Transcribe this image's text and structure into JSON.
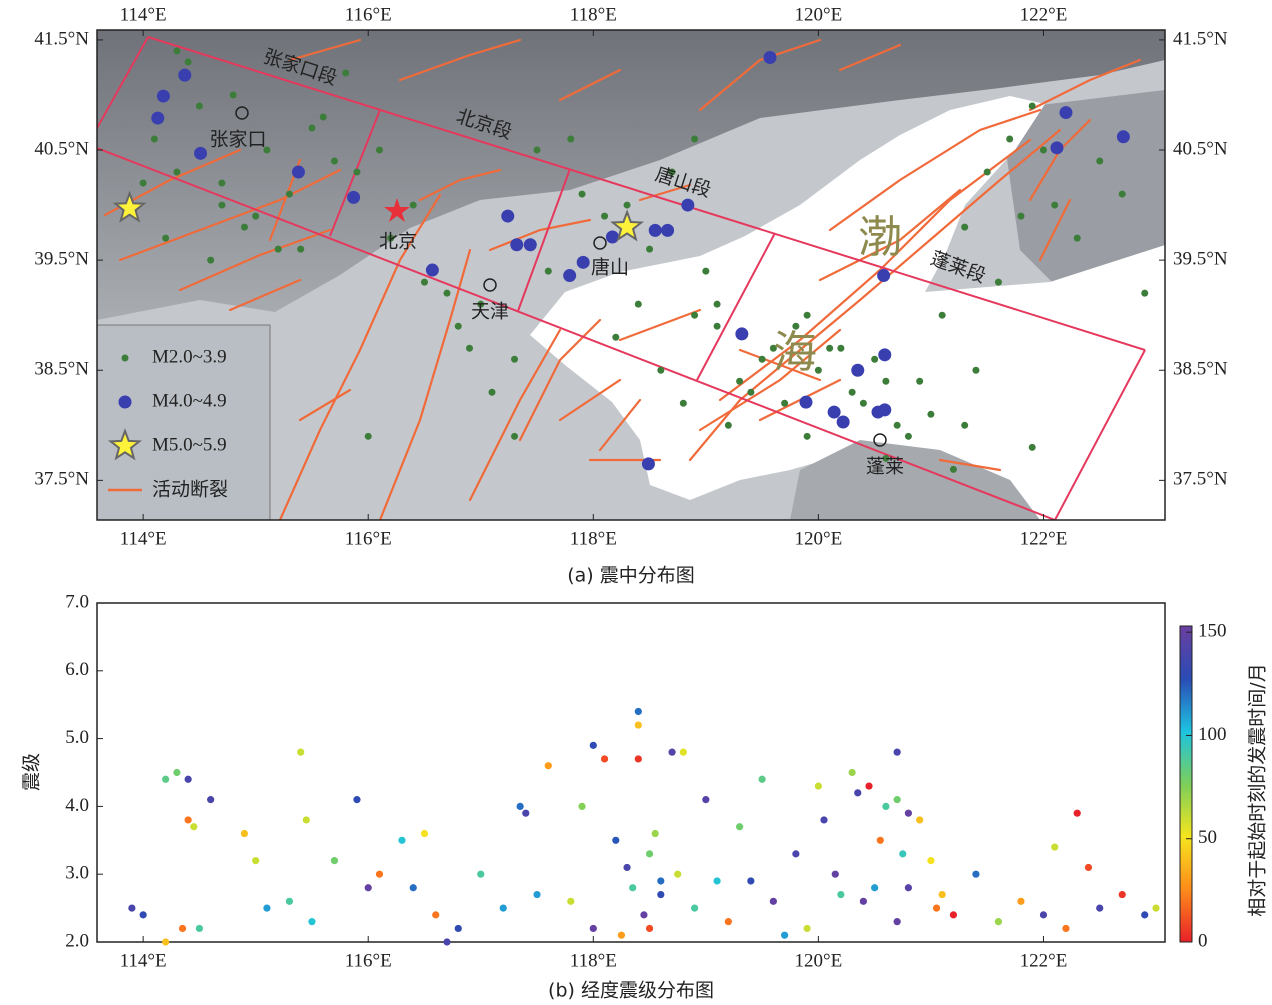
{
  "chart_data": [
    {
      "type": "map",
      "title": "(a) 震中分布图",
      "xlim": [
        113.59,
        123.08
      ],
      "ylim": [
        37.14,
        41.59
      ],
      "xticks": [
        {
          "value": 114,
          "label": "114°E"
        },
        {
          "value": 116,
          "label": "116°E"
        },
        {
          "value": 118,
          "label": "118°E"
        },
        {
          "value": 120,
          "label": "120°E"
        },
        {
          "value": 122,
          "label": "122°E"
        }
      ],
      "yticks": [
        {
          "value": 37.5,
          "label": "37.5°N"
        },
        {
          "value": 38.5,
          "label": "38.5°N"
        },
        {
          "value": 39.5,
          "label": "39.5°N"
        },
        {
          "value": 40.5,
          "label": "40.5°N"
        },
        {
          "value": 41.5,
          "label": "41.5°N"
        }
      ],
      "series": [
        {
          "name": "M2.0~3.9",
          "color": "#3d7d3a",
          "marker": "dot",
          "x": [
            114.1,
            114.3,
            114.5,
            114.7,
            114.9,
            115.1,
            115.3,
            115.5,
            115.7,
            115.2,
            114.6,
            114.2,
            114.0,
            114.4,
            114.8,
            115.0,
            115.4,
            115.9,
            116.2,
            116.5,
            116.8,
            117.0,
            117.3,
            117.6,
            117.9,
            118.1,
            118.3,
            118.5,
            118.7,
            118.9,
            119.1,
            119.3,
            119.5,
            119.7,
            119.9,
            120.1,
            120.3,
            120.5,
            120.7,
            120.9,
            121.1,
            121.3,
            121.5,
            121.7,
            121.9,
            122.1,
            122.3,
            122.5,
            122.7,
            122.9,
            116.7,
            116.9,
            117.1,
            117.3,
            118.2,
            118.4,
            118.6,
            118.8,
            119.0,
            119.2,
            119.4,
            119.6,
            119.8,
            120.0,
            120.2,
            120.4,
            120.6,
            120.8,
            121.0,
            121.2,
            121.4,
            121.6,
            121.8,
            122.0,
            115.6,
            115.8,
            116.1,
            116.4,
            114.3,
            114.7,
            119.1,
            119.9,
            120.6,
            121.3,
            117.5,
            116.0,
            115.1,
            117.8,
            118.9,
            121.9
          ],
          "y": [
            40.6,
            40.3,
            40.9,
            40.2,
            39.8,
            40.5,
            40.1,
            40.7,
            40.4,
            39.6,
            39.5,
            39.7,
            40.2,
            41.3,
            41.0,
            39.9,
            39.6,
            40.3,
            39.7,
            39.3,
            38.9,
            39.1,
            38.6,
            39.4,
            40.1,
            39.9,
            40.0,
            39.6,
            40.3,
            40.6,
            38.9,
            38.4,
            38.6,
            38.2,
            37.9,
            38.7,
            38.3,
            38.6,
            38.0,
            38.4,
            39.0,
            39.8,
            40.3,
            40.6,
            40.9,
            40.0,
            39.7,
            40.4,
            40.1,
            39.2,
            39.2,
            38.7,
            38.3,
            37.9,
            38.8,
            39.1,
            38.5,
            38.2,
            39.4,
            38.0,
            38.3,
            38.7,
            38.9,
            38.5,
            38.7,
            38.2,
            38.4,
            37.9,
            38.1,
            37.6,
            38.5,
            39.3,
            39.9,
            40.5,
            40.8,
            41.2,
            40.5,
            40.0,
            41.4,
            40.0,
            39.1,
            39.0,
            37.7,
            38.0,
            40.5,
            37.9,
            38.2,
            40.6,
            39.0,
            37.8
          ]
        },
        {
          "name": "M4.0~4.9",
          "color": "#3a3fb0",
          "marker": "circle",
          "x": [
            114.37,
            114.18,
            114.13,
            114.51,
            115.38,
            115.87,
            117.24,
            117.32,
            117.44,
            116.57,
            117.79,
            117.91,
            118.17,
            118.55,
            118.66,
            118.84,
            119.57,
            119.32,
            120.35,
            120.59,
            119.89,
            120.14,
            120.22,
            120.53,
            120.59,
            120.58,
            122.2,
            122.12,
            122.71,
            118.49
          ],
          "y": [
            41.18,
            40.99,
            40.79,
            40.47,
            40.3,
            40.07,
            39.9,
            39.64,
            39.64,
            39.41,
            39.36,
            39.48,
            39.71,
            39.77,
            39.77,
            40.0,
            41.34,
            38.83,
            38.5,
            38.64,
            38.21,
            38.12,
            38.03,
            38.12,
            38.14,
            39.36,
            40.84,
            40.52,
            40.62,
            37.65
          ]
        },
        {
          "name": "M5.0~5.9",
          "color": "#fff23a",
          "marker": "star",
          "x": [
            113.88,
            118.3
          ],
          "y": [
            39.97,
            39.8
          ]
        }
      ],
      "fault_legend": {
        "name": "活动断裂",
        "color": "#f06a3a"
      },
      "segment_labels": [
        "张家口段",
        "北京段",
        "唐山段",
        "蓬莱段"
      ],
      "city_labels": [
        "张家口",
        "北京",
        "天津",
        "唐山",
        "蓬莱"
      ],
      "sea_labels": [
        "渤",
        "海"
      ]
    },
    {
      "type": "scatter",
      "title": "(b) 经度震级分布图",
      "ylabel": "震级",
      "xlim": [
        113.59,
        123.08
      ],
      "ylim": [
        2.0,
        7.0
      ],
      "xticks": [
        {
          "value": 114,
          "label": "114°E"
        },
        {
          "value": 116,
          "label": "116°E"
        },
        {
          "value": 118,
          "label": "118°E"
        },
        {
          "value": 120,
          "label": "120°E"
        },
        {
          "value": 122,
          "label": "122°E"
        }
      ],
      "yticks": [
        {
          "value": 2,
          "label": "2.0"
        },
        {
          "value": 3,
          "label": "3.0"
        },
        {
          "value": 4,
          "label": "4.0"
        },
        {
          "value": 5,
          "label": "5.0"
        },
        {
          "value": 6,
          "label": "6.0"
        },
        {
          "value": 7,
          "label": "7.0"
        }
      ],
      "colorbar_label": "相对于起始时刻的发震时间/月",
      "clim": [
        0,
        153
      ],
      "cticks": [
        0,
        50,
        100,
        150
      ],
      "colormap": [
        "#e8202a",
        "#ff8c1a",
        "#f5e51e",
        "#7ccf5a",
        "#1ec3e0",
        "#2a4bb5",
        "#6b3fa0"
      ],
      "x": [
        113.9,
        114.0,
        114.2,
        114.3,
        114.35,
        114.4,
        114.4,
        114.45,
        114.5,
        114.6,
        114.2,
        114.9,
        115.0,
        115.1,
        115.4,
        115.45,
        115.5,
        115.7,
        115.9,
        116.0,
        116.1,
        116.3,
        116.4,
        116.5,
        116.6,
        116.8,
        117.0,
        117.2,
        117.35,
        117.4,
        117.6,
        117.8,
        117.9,
        118.0,
        118.1,
        118.2,
        118.3,
        118.35,
        118.4,
        118.4,
        118.4,
        118.45,
        118.5,
        118.5,
        118.6,
        118.7,
        118.75,
        118.8,
        118.9,
        119.0,
        119.1,
        119.2,
        119.3,
        119.5,
        119.6,
        119.8,
        119.9,
        120.0,
        120.05,
        120.2,
        120.3,
        120.35,
        120.4,
        120.45,
        120.5,
        120.55,
        120.6,
        120.7,
        120.7,
        120.75,
        120.8,
        120.8,
        120.9,
        121.0,
        121.05,
        121.2,
        121.4,
        121.6,
        121.8,
        122.0,
        122.1,
        122.3,
        122.4,
        122.5,
        122.7,
        122.9,
        123.0,
        118.0,
        118.6,
        120.7,
        117.5,
        118.25,
        118.55,
        119.4,
        120.15,
        115.3,
        116.7,
        121.1,
        122.2,
        119.7
      ],
      "y": [
        2.5,
        2.4,
        4.4,
        4.5,
        2.2,
        4.4,
        3.8,
        3.7,
        2.2,
        4.1,
        2.0,
        3.6,
        3.2,
        2.5,
        4.8,
        3.8,
        2.3,
        3.2,
        4.1,
        2.8,
        3.0,
        3.5,
        2.8,
        3.6,
        2.4,
        2.2,
        3.0,
        2.5,
        4.0,
        3.9,
        4.6,
        2.6,
        4.0,
        4.9,
        4.7,
        3.5,
        3.1,
        2.8,
        5.4,
        5.2,
        4.7,
        2.4,
        3.3,
        2.2,
        2.7,
        4.8,
        3.0,
        4.8,
        2.5,
        4.1,
        2.9,
        2.3,
        3.7,
        4.4,
        2.6,
        3.3,
        2.2,
        4.3,
        3.8,
        2.7,
        4.5,
        4.2,
        2.6,
        4.3,
        2.8,
        3.5,
        4.0,
        4.8,
        4.1,
        3.3,
        2.8,
        3.9,
        3.8,
        3.2,
        2.5,
        2.4,
        3.0,
        2.3,
        2.6,
        2.4,
        3.4,
        3.9,
        3.1,
        2.5,
        2.7,
        2.4,
        2.5,
        2.2,
        2.9,
        2.3,
        2.7,
        2.1,
        3.6,
        2.9,
        3.0,
        2.6,
        2.0,
        2.7,
        2.2,
        2.1
      ],
      "c": [
        140,
        130,
        85,
        80,
        20,
        140,
        20,
        60,
        90,
        140,
        40,
        40,
        60,
        110,
        60,
        60,
        100,
        80,
        130,
        150,
        20,
        100,
        120,
        50,
        20,
        130,
        90,
        110,
        120,
        140,
        30,
        60,
        75,
        130,
        10,
        125,
        140,
        90,
        120,
        40,
        5,
        150,
        80,
        10,
        130,
        145,
        60,
        55,
        90,
        145,
        100,
        20,
        80,
        85,
        150,
        140,
        60,
        60,
        140,
        90,
        70,
        140,
        150,
        0,
        110,
        20,
        90,
        140,
        80,
        95,
        145,
        150,
        40,
        50,
        20,
        0,
        120,
        70,
        30,
        140,
        60,
        0,
        10,
        140,
        5,
        130,
        60,
        150,
        120,
        150,
        110,
        30,
        70,
        130,
        150,
        90,
        140,
        40,
        20,
        110
      ]
    }
  ]
}
